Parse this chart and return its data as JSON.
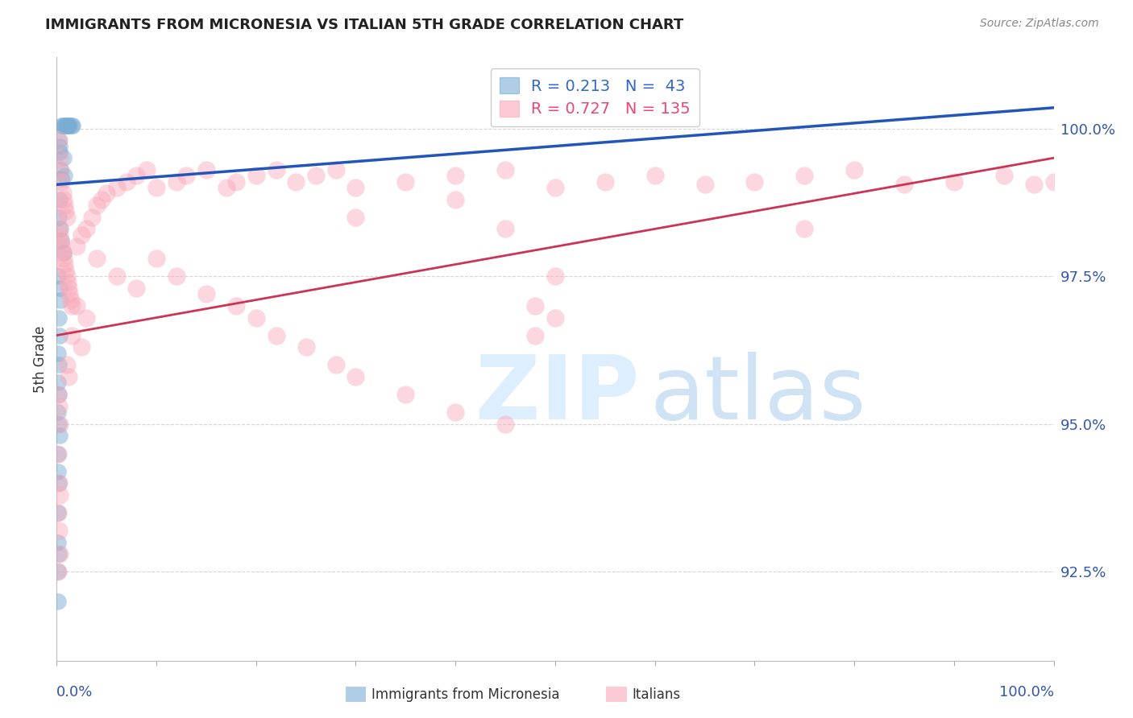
{
  "title": "IMMIGRANTS FROM MICRONESIA VS ITALIAN 5TH GRADE CORRELATION CHART",
  "source": "Source: ZipAtlas.com",
  "ylabel": "5th Grade",
  "y_ticks": [
    92.5,
    95.0,
    97.5,
    100.0
  ],
  "y_tick_labels": [
    "92.5%",
    "95.0%",
    "97.5%",
    "100.0%"
  ],
  "x_range": [
    0.0,
    1.0
  ],
  "y_range": [
    91.0,
    101.2
  ],
  "legend_r1": "R = 0.213",
  "legend_n1": "N =  43",
  "legend_r2": "R = 0.727",
  "legend_n2": "N = 135",
  "color_blue": "#7AADD4",
  "color_pink": "#F9A8B8",
  "color_blue_line": "#2255BB",
  "color_pink_line": "#CC3355",
  "color_blue_legend": "#3366CC",
  "color_pink_legend": "#EE4477",
  "color_axis_labels": "#3355AA",
  "color_grid": "#CCCCCC",
  "blue_points": [
    [
      0.005,
      100.05
    ],
    [
      0.006,
      100.05
    ],
    [
      0.008,
      100.05
    ],
    [
      0.009,
      100.05
    ],
    [
      0.01,
      100.05
    ],
    [
      0.011,
      100.05
    ],
    [
      0.012,
      100.05
    ],
    [
      0.013,
      100.05
    ],
    [
      0.015,
      100.05
    ],
    [
      0.016,
      100.05
    ],
    [
      0.003,
      99.7
    ],
    [
      0.007,
      99.5
    ],
    [
      0.004,
      99.3
    ],
    [
      0.005,
      99.15
    ],
    [
      0.002,
      99.8
    ],
    [
      0.003,
      99.6
    ],
    [
      0.008,
      99.2
    ],
    [
      0.003,
      98.8
    ],
    [
      0.002,
      98.5
    ],
    [
      0.004,
      98.3
    ],
    [
      0.005,
      98.1
    ],
    [
      0.007,
      97.9
    ],
    [
      0.001,
      97.5
    ],
    [
      0.003,
      97.3
    ],
    [
      0.004,
      97.1
    ],
    [
      0.002,
      96.8
    ],
    [
      0.003,
      96.5
    ],
    [
      0.001,
      96.2
    ],
    [
      0.002,
      96.0
    ],
    [
      0.001,
      95.7
    ],
    [
      0.002,
      95.5
    ],
    [
      0.001,
      95.2
    ],
    [
      0.002,
      95.0
    ],
    [
      0.003,
      94.8
    ],
    [
      0.001,
      94.5
    ],
    [
      0.001,
      94.2
    ],
    [
      0.002,
      94.0
    ],
    [
      0.001,
      93.5
    ],
    [
      0.001,
      93.0
    ],
    [
      0.002,
      92.8
    ],
    [
      0.001,
      92.5
    ],
    [
      0.001,
      92.0
    ]
  ],
  "pink_points": [
    [
      0.002,
      99.8
    ],
    [
      0.003,
      99.5
    ],
    [
      0.004,
      99.3
    ],
    [
      0.005,
      99.1
    ],
    [
      0.006,
      98.9
    ],
    [
      0.007,
      98.8
    ],
    [
      0.008,
      98.7
    ],
    [
      0.009,
      98.6
    ],
    [
      0.01,
      98.5
    ],
    [
      0.002,
      98.3
    ],
    [
      0.003,
      98.2
    ],
    [
      0.004,
      98.1
    ],
    [
      0.005,
      98.0
    ],
    [
      0.006,
      97.9
    ],
    [
      0.007,
      97.8
    ],
    [
      0.008,
      97.7
    ],
    [
      0.009,
      97.6
    ],
    [
      0.01,
      97.5
    ],
    [
      0.011,
      97.4
    ],
    [
      0.012,
      97.3
    ],
    [
      0.013,
      97.2
    ],
    [
      0.014,
      97.1
    ],
    [
      0.015,
      97.0
    ],
    [
      0.02,
      98.0
    ],
    [
      0.025,
      98.2
    ],
    [
      0.03,
      98.3
    ],
    [
      0.035,
      98.5
    ],
    [
      0.04,
      98.7
    ],
    [
      0.045,
      98.8
    ],
    [
      0.05,
      98.9
    ],
    [
      0.06,
      99.0
    ],
    [
      0.07,
      99.1
    ],
    [
      0.08,
      99.2
    ],
    [
      0.09,
      99.3
    ],
    [
      0.1,
      99.0
    ],
    [
      0.12,
      99.1
    ],
    [
      0.13,
      99.2
    ],
    [
      0.15,
      99.3
    ],
    [
      0.17,
      99.0
    ],
    [
      0.18,
      99.1
    ],
    [
      0.2,
      99.2
    ],
    [
      0.22,
      99.3
    ],
    [
      0.24,
      99.1
    ],
    [
      0.26,
      99.2
    ],
    [
      0.28,
      99.3
    ],
    [
      0.3,
      99.0
    ],
    [
      0.35,
      99.1
    ],
    [
      0.4,
      99.2
    ],
    [
      0.45,
      99.3
    ],
    [
      0.5,
      99.0
    ],
    [
      0.55,
      99.1
    ],
    [
      0.6,
      99.2
    ],
    [
      0.65,
      99.05
    ],
    [
      0.7,
      99.1
    ],
    [
      0.75,
      99.2
    ],
    [
      0.8,
      99.3
    ],
    [
      0.85,
      99.05
    ],
    [
      0.9,
      99.1
    ],
    [
      0.95,
      99.2
    ],
    [
      0.98,
      99.05
    ],
    [
      1.0,
      99.1
    ],
    [
      0.04,
      97.8
    ],
    [
      0.06,
      97.5
    ],
    [
      0.08,
      97.3
    ],
    [
      0.02,
      97.0
    ],
    [
      0.03,
      96.8
    ],
    [
      0.015,
      96.5
    ],
    [
      0.025,
      96.3
    ],
    [
      0.01,
      96.0
    ],
    [
      0.012,
      95.8
    ],
    [
      0.3,
      98.5
    ],
    [
      0.4,
      98.8
    ],
    [
      0.45,
      98.3
    ],
    [
      0.5,
      97.5
    ],
    [
      0.48,
      97.0
    ],
    [
      0.75,
      98.3
    ],
    [
      0.001,
      95.5
    ],
    [
      0.002,
      95.3
    ],
    [
      0.003,
      95.0
    ],
    [
      0.001,
      94.5
    ],
    [
      0.1,
      97.8
    ],
    [
      0.12,
      97.5
    ],
    [
      0.002,
      94.0
    ],
    [
      0.003,
      93.8
    ],
    [
      0.001,
      93.5
    ],
    [
      0.002,
      93.2
    ],
    [
      0.15,
      97.2
    ],
    [
      0.18,
      97.0
    ],
    [
      0.2,
      96.8
    ],
    [
      0.22,
      96.5
    ],
    [
      0.25,
      96.3
    ],
    [
      0.28,
      96.0
    ],
    [
      0.3,
      95.8
    ],
    [
      0.35,
      95.5
    ],
    [
      0.4,
      95.2
    ],
    [
      0.45,
      95.0
    ],
    [
      0.48,
      96.5
    ],
    [
      0.5,
      96.8
    ],
    [
      0.003,
      92.8
    ],
    [
      0.001,
      92.5
    ]
  ],
  "blue_line": [
    [
      0.0,
      99.05
    ],
    [
      1.0,
      100.35
    ]
  ],
  "pink_line": [
    [
      0.0,
      96.5
    ],
    [
      1.0,
      99.5
    ]
  ]
}
